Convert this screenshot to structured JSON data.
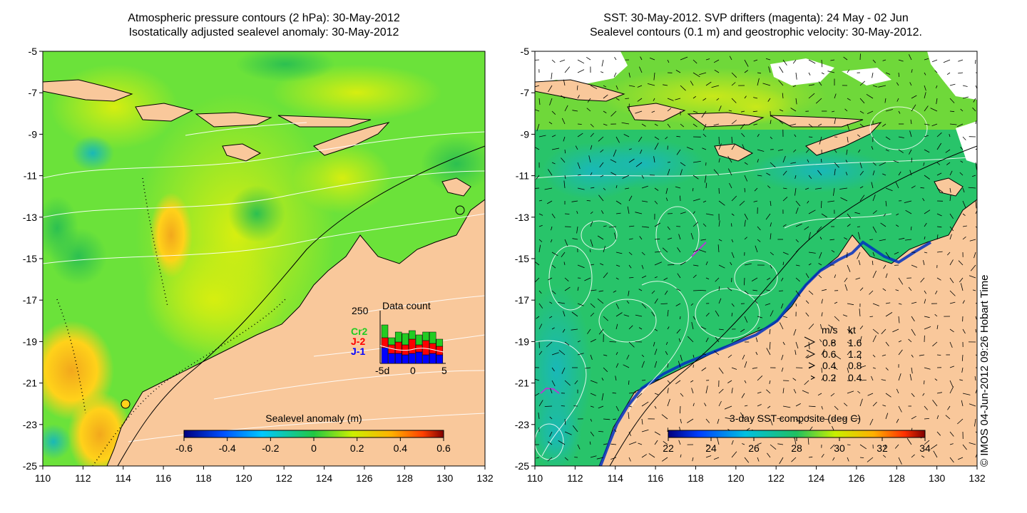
{
  "left_panel": {
    "title_line1": "Atmospheric pressure contours (2 hPa): 30-May-2012",
    "title_line2": "Isostatically adjusted sealevel anomaly: 30-May-2012",
    "colorbar_label": "Sealevel anomaly (m)",
    "colorbar_ticks": [
      "-0.6",
      "-0.4",
      "-0.2",
      "0",
      "0.2",
      "0.4",
      "0.6"
    ],
    "inset": {
      "title": "Data count",
      "ymax_label": "250",
      "x_ticks": [
        "-5d",
        "0",
        "5"
      ],
      "legend": [
        {
          "label": "Cr2",
          "color": "#22cc22"
        },
        {
          "label": "J-2",
          "color": "#ff0000"
        },
        {
          "label": "J-1",
          "color": "#0000ff"
        }
      ]
    }
  },
  "right_panel": {
    "title_line1": "SST: 30-May-2012. SVP drifters (magenta): 24 May - 02 Jun",
    "title_line2": "Sealevel contours (0.1 m) and geostrophic velocity: 30-May-2012.",
    "colorbar_label": "3-day SST composite (deg C)",
    "colorbar_ticks": [
      "22",
      "24",
      "26",
      "28",
      "30",
      "32",
      "34"
    ],
    "velocity_legend": {
      "header_ms": "m/s",
      "header_kt": "kt",
      "rows": [
        {
          "ms": "0.8",
          "kt": "1.6"
        },
        {
          "ms": "0.6",
          "kt": "1.2"
        },
        {
          "ms": "0.4",
          "kt": "0.8"
        },
        {
          "ms": "0.2",
          "kt": "0.4"
        }
      ]
    }
  },
  "axes": {
    "x_ticks": [
      "110",
      "112",
      "114",
      "116",
      "118",
      "120",
      "122",
      "124",
      "126",
      "128",
      "130",
      "132"
    ],
    "y_ticks": [
      "-5",
      "-7",
      "-9",
      "-11",
      "-13",
      "-15",
      "-17",
      "-19",
      "-21",
      "-23",
      "-25"
    ],
    "lon_range": [
      110,
      132
    ],
    "lat_range": [
      -25,
      -5
    ]
  },
  "credit": "© IMOS 04-Jun-2012 09:26 Hobart Time",
  "colors": {
    "land": "#f9c89b",
    "sla_ocean": "#6be23a",
    "sst_ocean": "#28c46a"
  }
}
